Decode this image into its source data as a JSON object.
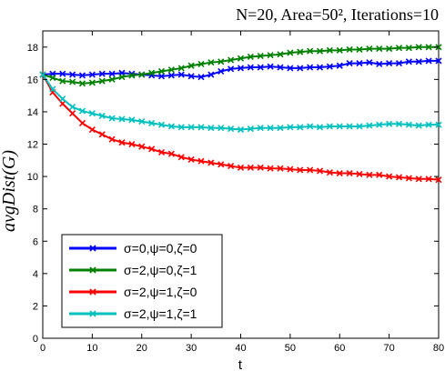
{
  "chart_data": {
    "type": "line",
    "title": "N=20, Area=50², Iterations=10",
    "xlabel": "t",
    "ylabel": "avgDist(G)",
    "xlim": [
      0,
      80
    ],
    "ylim": [
      0,
      19
    ],
    "xticks": [
      "0",
      "10",
      "20",
      "30",
      "40",
      "50",
      "60",
      "70",
      "80"
    ],
    "yticks": [
      "0",
      "2",
      "4",
      "6",
      "8",
      "10",
      "12",
      "14",
      "16",
      "18"
    ],
    "grid": false,
    "legend_position": "bottom-left",
    "x": [
      0,
      2,
      4,
      6,
      8,
      10,
      12,
      14,
      16,
      18,
      20,
      22,
      24,
      26,
      28,
      30,
      32,
      34,
      36,
      38,
      40,
      42,
      44,
      46,
      48,
      50,
      52,
      54,
      56,
      58,
      60,
      62,
      64,
      66,
      68,
      70,
      72,
      74,
      76,
      78,
      80
    ],
    "series": [
      {
        "name": "σ=0,ψ=0,ζ=0",
        "color": "#0000ff",
        "values": [
          16.3,
          16.35,
          16.35,
          16.3,
          16.25,
          16.3,
          16.35,
          16.35,
          16.4,
          16.35,
          16.3,
          16.25,
          16.2,
          16.25,
          16.3,
          16.2,
          16.15,
          16.3,
          16.5,
          16.65,
          16.7,
          16.75,
          16.75,
          16.8,
          16.75,
          16.7,
          16.7,
          16.75,
          16.75,
          16.8,
          16.85,
          17.0,
          17.0,
          17.05,
          16.95,
          17.0,
          17.0,
          17.1,
          17.1,
          17.15,
          17.15
        ]
      },
      {
        "name": "σ=2,ψ=0,ζ=1",
        "color": "#008000",
        "values": [
          16.3,
          16.1,
          15.9,
          15.85,
          15.75,
          15.8,
          15.9,
          16.0,
          16.15,
          16.25,
          16.3,
          16.4,
          16.5,
          16.6,
          16.7,
          16.85,
          16.95,
          17.05,
          17.1,
          17.2,
          17.3,
          17.4,
          17.45,
          17.5,
          17.55,
          17.65,
          17.7,
          17.75,
          17.75,
          17.8,
          17.8,
          17.85,
          17.85,
          17.9,
          17.9,
          17.9,
          17.95,
          17.95,
          18.0,
          18.0,
          18.0
        ]
      },
      {
        "name": "σ=2,ψ=1,ζ=0",
        "color": "#ff0000",
        "values": [
          16.3,
          15.2,
          14.5,
          13.9,
          13.3,
          12.9,
          12.6,
          12.3,
          12.1,
          12.0,
          11.85,
          11.7,
          11.5,
          11.4,
          11.2,
          11.05,
          10.95,
          10.85,
          10.75,
          10.65,
          10.55,
          10.55,
          10.55,
          10.5,
          10.5,
          10.45,
          10.4,
          10.4,
          10.35,
          10.25,
          10.2,
          10.2,
          10.15,
          10.1,
          10.1,
          10.0,
          9.95,
          9.9,
          9.85,
          9.85,
          9.8
        ]
      },
      {
        "name": "σ=2,ψ=1,ζ=1",
        "color": "#00c0c0",
        "values": [
          16.3,
          15.4,
          14.8,
          14.3,
          14.05,
          13.9,
          13.75,
          13.6,
          13.55,
          13.5,
          13.4,
          13.3,
          13.2,
          13.1,
          13.05,
          13.05,
          13.05,
          13.0,
          13.0,
          12.95,
          12.9,
          12.95,
          13.0,
          13.0,
          13.0,
          13.05,
          13.05,
          13.1,
          13.05,
          13.1,
          13.1,
          13.1,
          13.1,
          13.15,
          13.2,
          13.25,
          13.25,
          13.2,
          13.15,
          13.2,
          13.2
        ]
      }
    ]
  }
}
